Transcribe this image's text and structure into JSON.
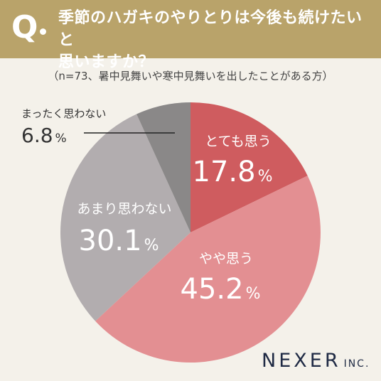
{
  "header": {
    "q": "Q",
    "question_line1": "季節のハガキのやりとりは今後も続けたいと",
    "question_line2": "思いますか？"
  },
  "subtitle": "（n=73、暑中見舞いや寒中見舞いを出したことがある方）",
  "logo": {
    "main": "NEXER",
    "inc": "INC."
  },
  "colors": {
    "header_bg": "#b9a36a",
    "strongly_agree": "#cf5c5f",
    "agree": "#e38f92",
    "disagree": "#b2adaf",
    "strongly_disagree": "#8a8888"
  },
  "chart_data": {
    "type": "pie",
    "unit": "%",
    "slices": [
      {
        "label": "とても思う",
        "value": 17.8,
        "display": "17.8",
        "color": "#cf5c5f"
      },
      {
        "label": "やや思う",
        "value": 45.2,
        "display": "45.2",
        "color": "#e38f92"
      },
      {
        "label": "あまり思わない",
        "value": 30.1,
        "display": "30.1",
        "color": "#b2adaf"
      },
      {
        "label": "まったく思わない",
        "value": 6.8,
        "display": "6.8",
        "color": "#8a8888"
      }
    ]
  }
}
